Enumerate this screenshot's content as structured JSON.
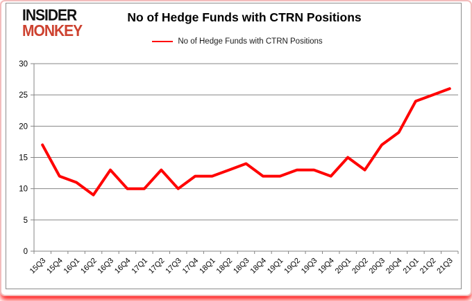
{
  "logo": {
    "line1": "INSIDER",
    "line2": "MONKEY"
  },
  "header": {
    "title": "No of Hedge Funds with CTRN Positions"
  },
  "legend": {
    "label": "No of Hedge Funds with CTRN Positions"
  },
  "colors": {
    "line": "#ff0000",
    "grid": "#848484",
    "axis_text": "#000000",
    "logo_black": "#111111",
    "logo_red": "#cd4230",
    "border_pink": "#f3bcbc"
  },
  "chart_data": {
    "type": "line",
    "title": "No of Hedge Funds with CTRN Positions",
    "categories": [
      "15Q3",
      "15Q4",
      "16Q1",
      "16Q2",
      "16Q3",
      "16Q4",
      "17Q1",
      "17Q2",
      "17Q3",
      "17Q4",
      "18Q1",
      "18Q2",
      "18Q3",
      "18Q4",
      "19Q1",
      "19Q2",
      "19Q3",
      "19Q4",
      "20Q1",
      "20Q2",
      "20Q3",
      "20Q4",
      "21Q1",
      "21Q2",
      "21Q3"
    ],
    "values": [
      17,
      12,
      11,
      9,
      13,
      10,
      10,
      13,
      10,
      12,
      12,
      13,
      14,
      12,
      12,
      13,
      13,
      12,
      15,
      13,
      17,
      19,
      24,
      25,
      26
    ],
    "xlabel": "",
    "ylabel": "",
    "ylim": [
      0,
      30
    ],
    "ytick_interval": 5,
    "grid": true,
    "legend_position": "top",
    "legend_entries": [
      "No of Hedge Funds with CTRN Positions"
    ]
  }
}
